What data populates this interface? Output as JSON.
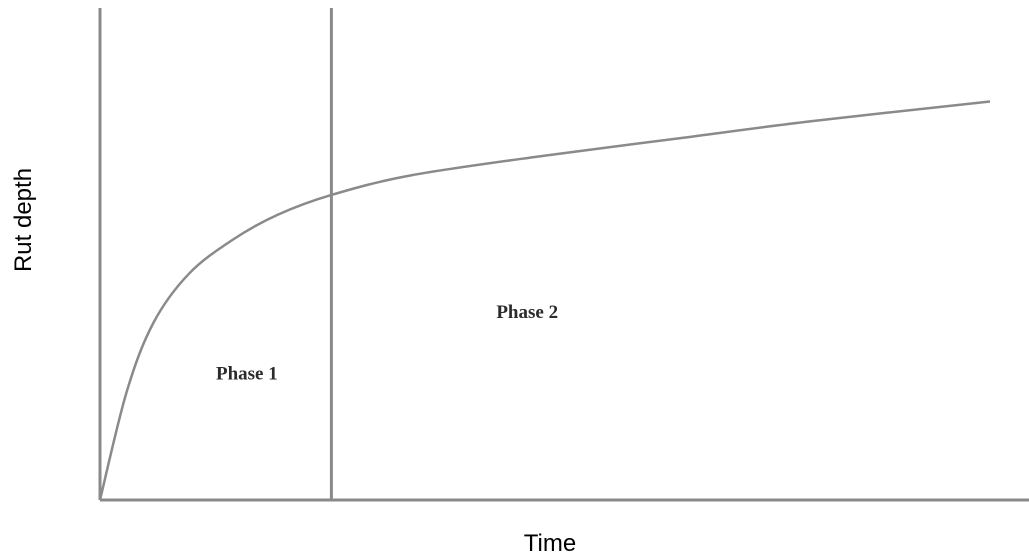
{
  "chart_data": {
    "type": "line",
    "xlabel": "Time",
    "ylabel": "Rut depth",
    "xlim": [
      0,
      10
    ],
    "ylim": [
      0,
      10
    ],
    "grid": false,
    "legend": "none",
    "axis_color": "#8a8a8a",
    "line_color": "#8a8a8a",
    "phase_boundary_x": 2.6,
    "phases": [
      {
        "label": "Phase 1",
        "x": 1.65,
        "y": 2.45
      },
      {
        "label": "Phase 2",
        "x": 4.8,
        "y": 3.7
      }
    ],
    "series": [
      {
        "x": [
          0,
          0.3,
          0.6,
          1.0,
          1.5,
          2.0,
          2.6,
          3.5,
          5.0,
          6.5,
          8.0,
          10.0
        ],
        "values": [
          0,
          2.2,
          3.6,
          4.6,
          5.3,
          5.8,
          6.2,
          6.6,
          7.0,
          7.35,
          7.7,
          8.1
        ]
      }
    ]
  }
}
